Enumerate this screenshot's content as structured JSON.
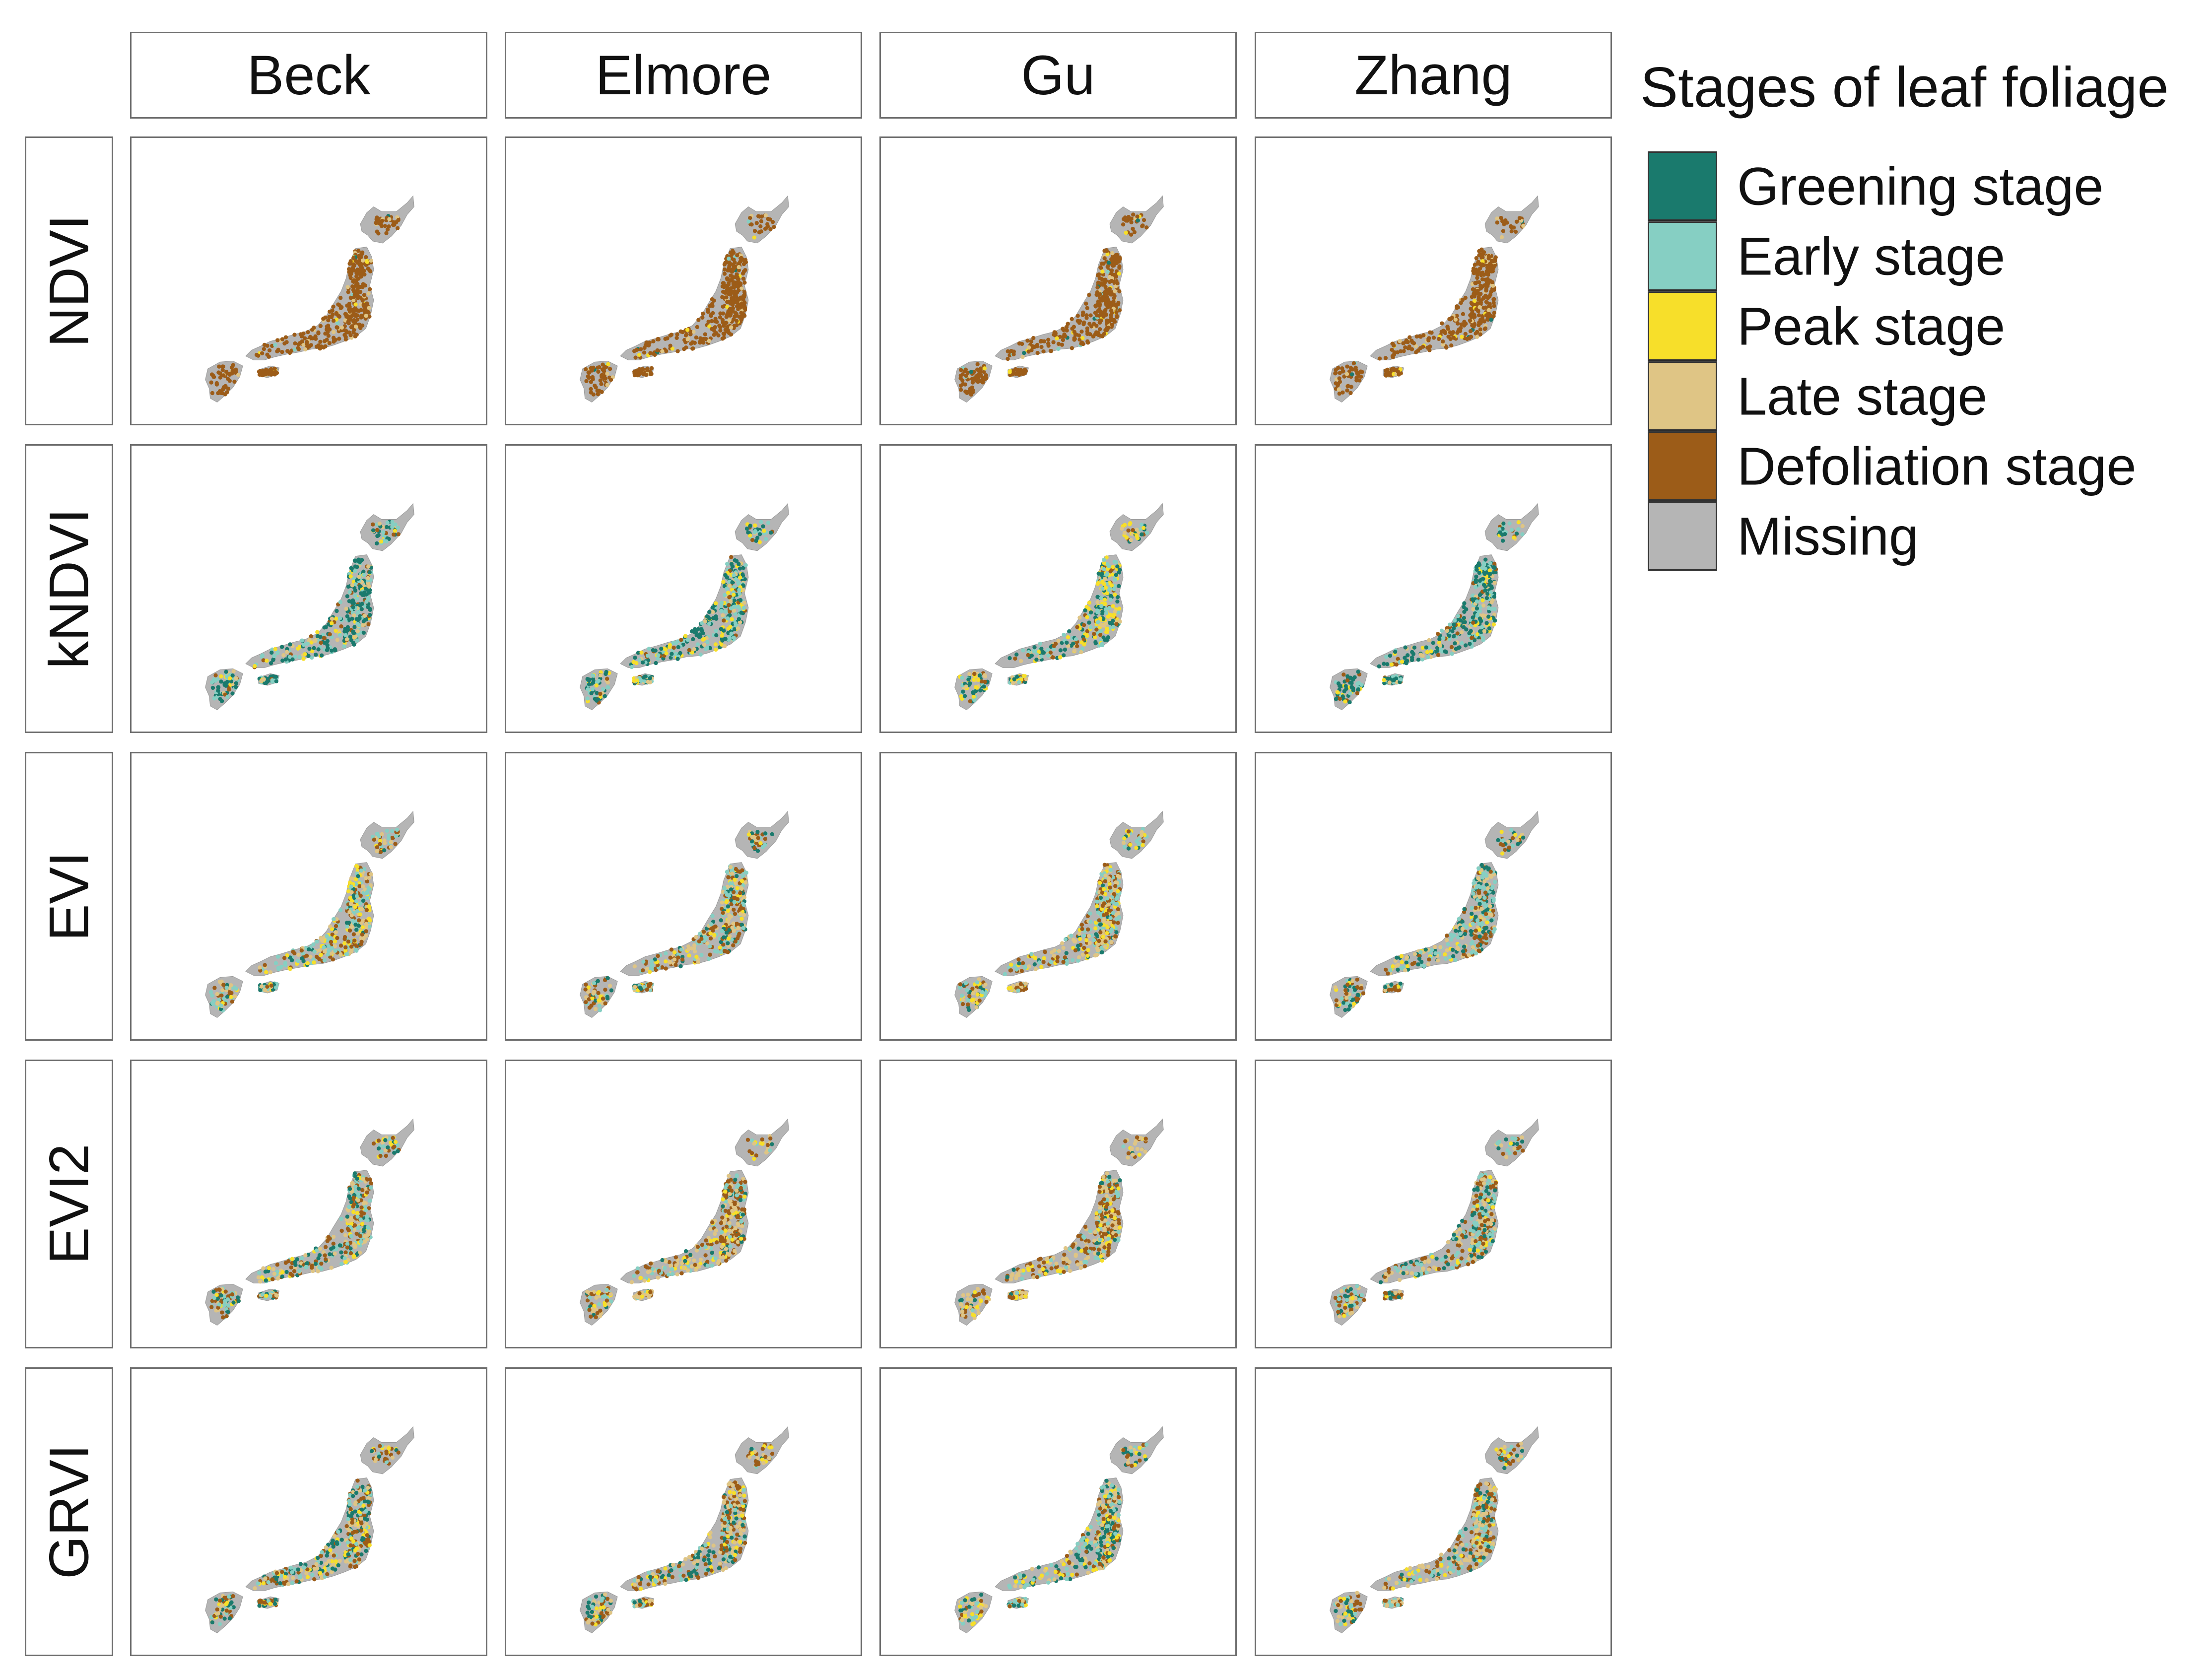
{
  "columns": [
    "Beck",
    "Elmore",
    "Gu",
    "Zhang"
  ],
  "rows": [
    "NDVI",
    "kNDVI",
    "EVI",
    "EVI2",
    "GRVI"
  ],
  "legend": {
    "title": "Stages of leaf foliage",
    "items": [
      {
        "label": "Greening stage",
        "color": "#1a7a6d"
      },
      {
        "label": "Early stage",
        "color": "#86cfc3"
      },
      {
        "label": "Peak stage",
        "color": "#f7df2a"
      },
      {
        "label": "Late stage",
        "color": "#dfc585"
      },
      {
        "label": "Defoliation stage",
        "color": "#9c5c18"
      },
      {
        "label": "Missing",
        "color": "#b5b5b5"
      }
    ]
  },
  "stage_mix": {
    "NDVI": {
      "Beck": [
        0.01,
        0.01,
        0.02,
        0.06,
        0.9
      ],
      "Elmore": [
        0.01,
        0.01,
        0.02,
        0.08,
        0.88
      ],
      "Gu": [
        0.02,
        0.02,
        0.03,
        0.05,
        0.88
      ],
      "Zhang": [
        0.01,
        0.01,
        0.02,
        0.1,
        0.86
      ]
    },
    "kNDVI": {
      "Beck": [
        0.42,
        0.3,
        0.08,
        0.12,
        0.08
      ],
      "Elmore": [
        0.38,
        0.26,
        0.16,
        0.12,
        0.08
      ],
      "Gu": [
        0.28,
        0.22,
        0.28,
        0.12,
        0.1
      ],
      "Zhang": [
        0.45,
        0.28,
        0.08,
        0.11,
        0.08
      ]
    },
    "EVI": {
      "Beck": [
        0.12,
        0.26,
        0.14,
        0.24,
        0.24
      ],
      "Elmore": [
        0.12,
        0.24,
        0.12,
        0.24,
        0.28
      ],
      "Gu": [
        0.1,
        0.22,
        0.22,
        0.22,
        0.24
      ],
      "Zhang": [
        0.22,
        0.3,
        0.08,
        0.2,
        0.2
      ]
    },
    "EVI2": {
      "Beck": [
        0.16,
        0.26,
        0.1,
        0.22,
        0.26
      ],
      "Elmore": [
        0.08,
        0.16,
        0.1,
        0.3,
        0.36
      ],
      "Gu": [
        0.08,
        0.12,
        0.12,
        0.3,
        0.38
      ],
      "Zhang": [
        0.18,
        0.26,
        0.06,
        0.24,
        0.26
      ]
    },
    "GRVI": {
      "Beck": [
        0.22,
        0.18,
        0.12,
        0.22,
        0.26
      ],
      "Elmore": [
        0.18,
        0.18,
        0.14,
        0.24,
        0.26
      ],
      "Gu": [
        0.26,
        0.24,
        0.16,
        0.18,
        0.16
      ],
      "Zhang": [
        0.12,
        0.2,
        0.14,
        0.26,
        0.28
      ]
    }
  }
}
